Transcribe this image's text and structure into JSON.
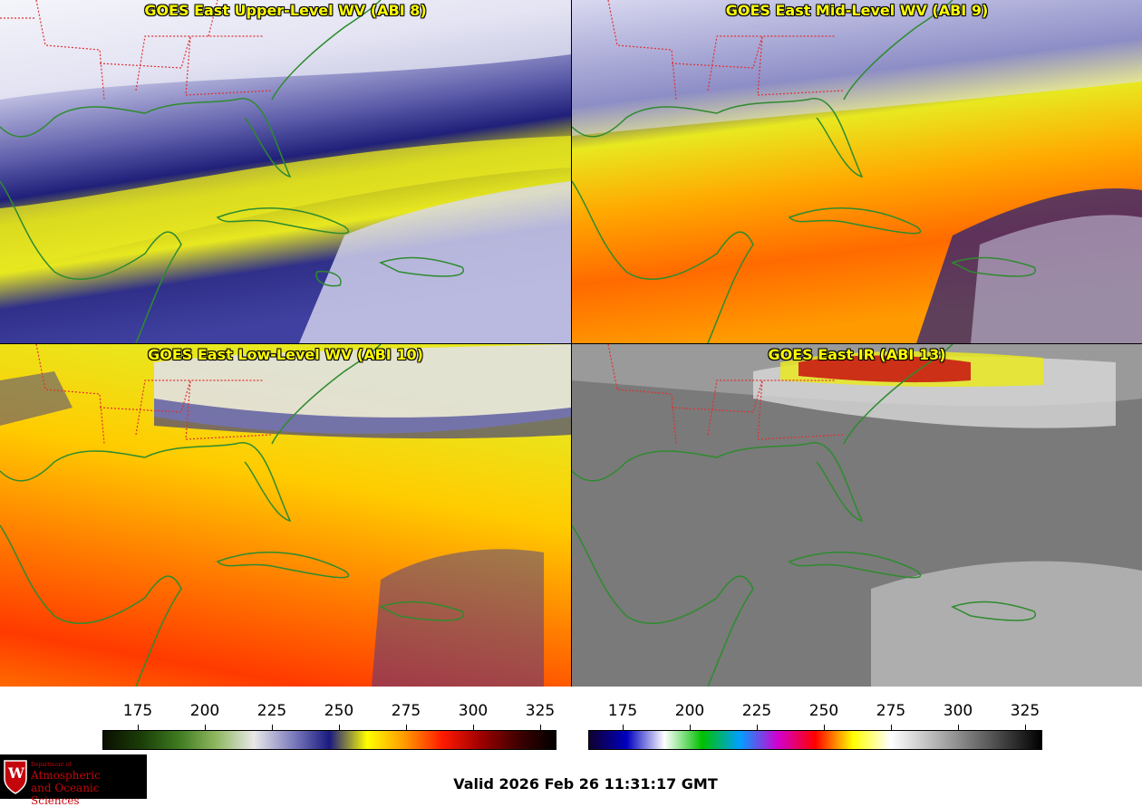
{
  "panels": [
    {
      "title": "GOES East Upper-Level WV (ABI 8)",
      "palette": "wv"
    },
    {
      "title": "GOES East Mid-Level WV (ABI 9)",
      "palette": "wv"
    },
    {
      "title": "GOES East Low-Level WV (ABI 10)",
      "palette": "wv"
    },
    {
      "title": "GOES East IR (ABI 13)",
      "palette": "ir"
    }
  ],
  "colorbars": [
    {
      "name": "wv-colorbar",
      "ticks": [
        "175",
        "200",
        "225",
        "250",
        "275",
        "300",
        "325"
      ],
      "stops": [
        "#0a0f00",
        "#1a3d08",
        "#3e7a20",
        "#8fb860",
        "#e8e8e8",
        "#8080c0",
        "#1a1a80",
        "#ffff00",
        "#ff9900",
        "#ff1a00",
        "#a00000",
        "#400000",
        "#000000"
      ]
    },
    {
      "name": "ir-colorbar",
      "ticks": [
        "175",
        "200",
        "225",
        "250",
        "275",
        "300",
        "325"
      ],
      "stops": [
        "#100030",
        "#0000c0",
        "#ffffff",
        "#00c000",
        "#00a0ff",
        "#d000d0",
        "#ff0000",
        "#ffff00",
        "#ffffff",
        "#c0c0c0",
        "#808080",
        "#404040",
        "#000000"
      ]
    }
  ],
  "logo": {
    "line1": "Department of",
    "line2": "Atmospheric",
    "line3": "and Oceanic Sciences",
    "seal": "W"
  },
  "footer": {
    "valid_text": "Valid 2026 Feb 26 11:31:17 GMT"
  },
  "colors": {
    "title": "#ffff00",
    "coast": "#2e8b2e",
    "borders": "#e03030",
    "uw_red": "#c5050c"
  }
}
